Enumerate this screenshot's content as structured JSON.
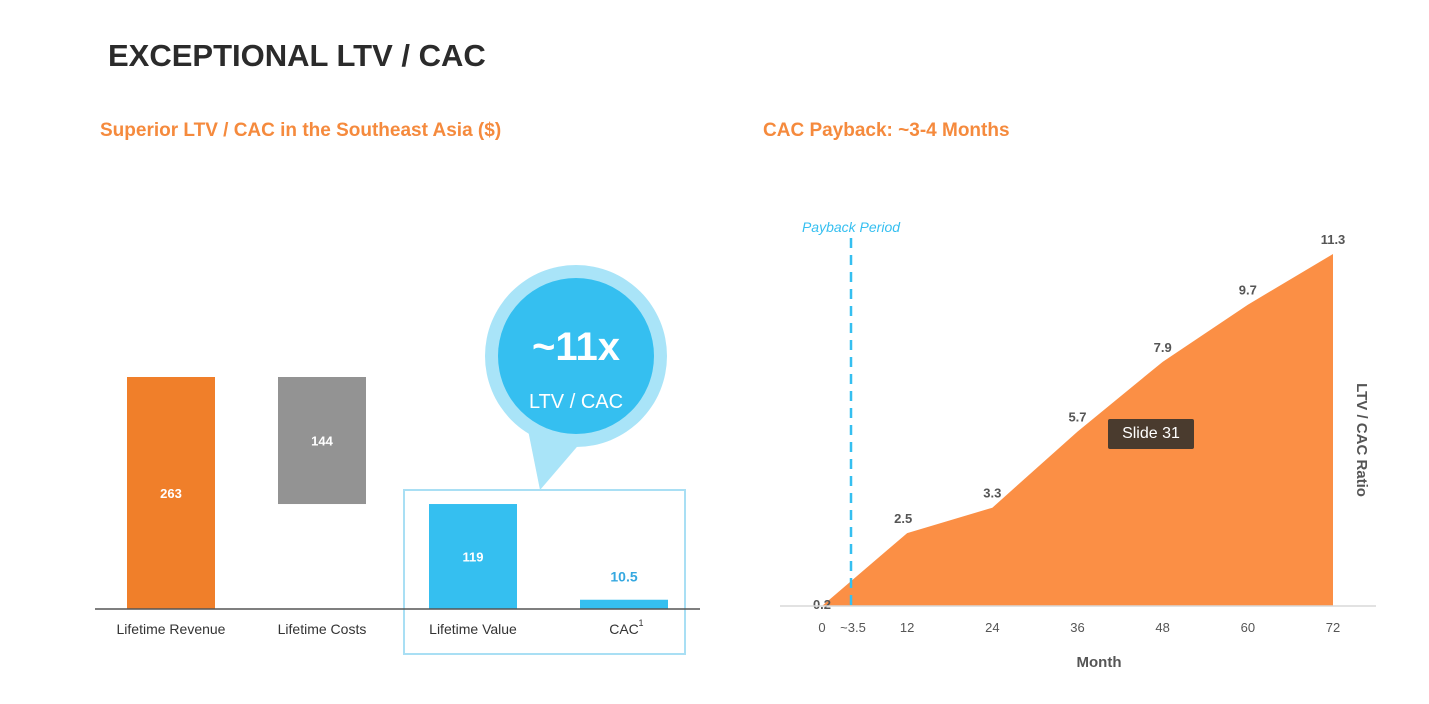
{
  "page": {
    "title": "EXCEPTIONAL LTV / CAC",
    "tooltip": "Slide 31"
  },
  "chart_data": [
    {
      "type": "bar",
      "title": "Superior LTV / CAC in the Southeast Asia ($)",
      "subtype": "waterfall",
      "categories": [
        "Lifetime Revenue",
        "Lifetime Costs",
        "Lifetime Value",
        "CAC"
      ],
      "category_footnotes": [
        "",
        "",
        "",
        "1"
      ],
      "values": [
        263,
        144,
        119,
        10.5
      ],
      "value_labels": [
        "263",
        "144",
        "119",
        "10.5"
      ],
      "colors": [
        "#f07f2a",
        "#939393",
        "#35bff0",
        "#35bff0"
      ],
      "callout": {
        "value": "~11x",
        "label": "LTV / CAC",
        "color": "#35bff0"
      }
    },
    {
      "type": "area",
      "title": "CAC Payback: ~3-4 Months",
      "xlabel": "Month",
      "ylabel": "LTV / CAC Ratio",
      "x_ticks": [
        "0",
        "~3.5",
        "12",
        "24",
        "36",
        "48",
        "60",
        "72"
      ],
      "x": [
        0,
        12,
        24,
        36,
        48,
        60,
        72
      ],
      "y": [
        0.2,
        2.5,
        3.3,
        5.7,
        7.9,
        9.7,
        11.3
      ],
      "point_labels": [
        "0.2",
        "2.5",
        "3.3",
        "5.7",
        "7.9",
        "9.7",
        "11.3"
      ],
      "color": "#fb8f45",
      "payback_line": {
        "x": 3.5,
        "label": "Payback Period",
        "color": "#35bff0"
      },
      "grid": false
    }
  ]
}
